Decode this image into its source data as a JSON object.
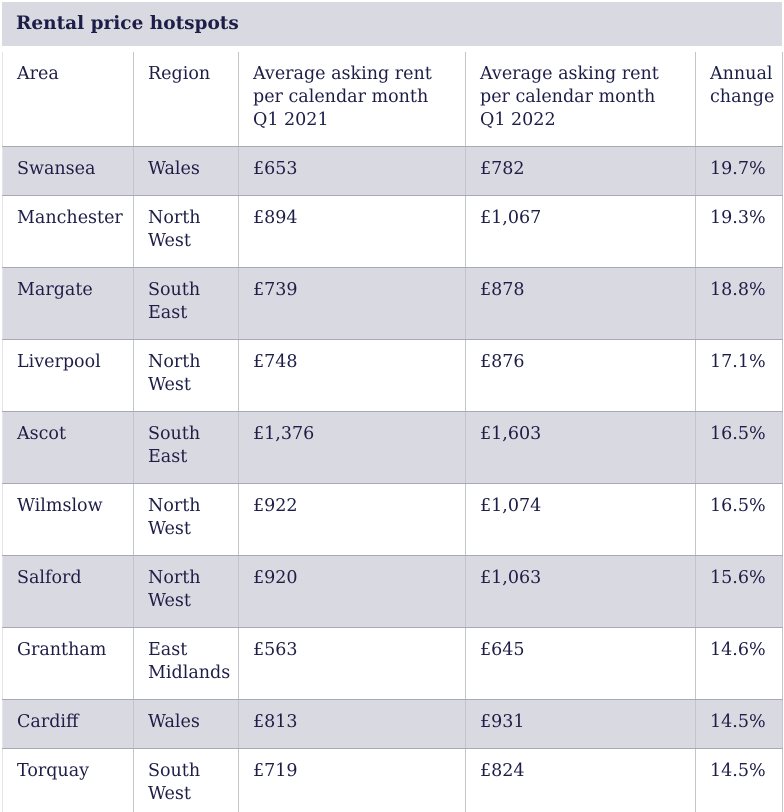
{
  "page": {
    "title": "Rental price hotspots"
  },
  "chart_data": {
    "type": "table",
    "title": "Rental price hotspots",
    "columns": [
      "Area",
      "Region",
      "Average asking rent per calendar month Q1 2021",
      "Average asking rent per calendar month Q1 2022",
      "Annual change"
    ],
    "rows": [
      [
        "Swansea",
        "Wales",
        "£653",
        "£782",
        "19.7%"
      ],
      [
        "Manchester",
        "North West",
        "£894",
        "£1,067",
        "19.3%"
      ],
      [
        "Margate",
        "South East",
        "£739",
        "£878",
        "18.8%"
      ],
      [
        "Liverpool",
        "North West",
        "£748",
        "£876",
        "17.1%"
      ],
      [
        "Ascot",
        "South East",
        "£1,376",
        "£1,603",
        "16.5%"
      ],
      [
        "Wilmslow",
        "North West",
        "£922",
        "£1,074",
        "16.5%"
      ],
      [
        "Salford",
        "North West",
        "£920",
        "£1,063",
        "15.6%"
      ],
      [
        "Grantham",
        "East Midlands",
        "£563",
        "£645",
        "14.6%"
      ],
      [
        "Cardiff",
        "Wales",
        "£813",
        "£931",
        "14.5%"
      ],
      [
        "Torquay",
        "South West",
        "£719",
        "£824",
        "14.5%"
      ]
    ],
    "layout": {
      "striped_rows": "odd",
      "legend": "none",
      "grid": "cell-borders"
    }
  },
  "colors": {
    "text": "#1d1d47",
    "stripe": "#d9d9e1",
    "row_background": "#ffffff",
    "border_vertical": "#c4c4cd",
    "border_horizontal": "#a9a9b4",
    "border_outer_left": "#e4e4ea"
  }
}
